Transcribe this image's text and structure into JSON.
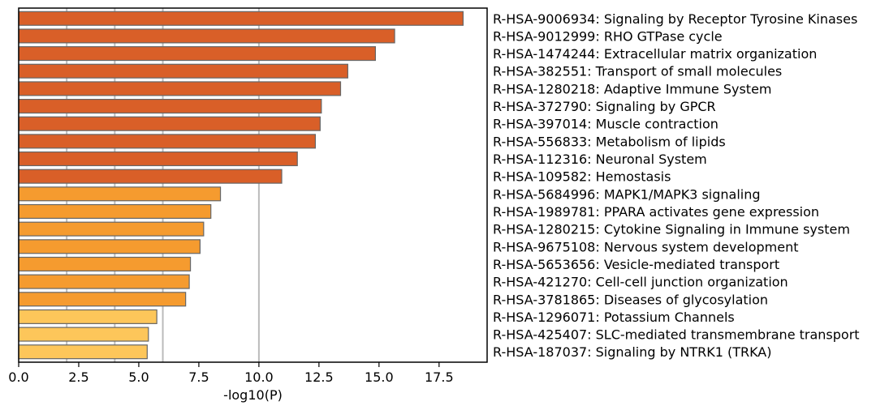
{
  "chart_data": {
    "type": "bar",
    "orientation": "horizontal",
    "xlabel": "-log10(P)",
    "xlim": [
      0,
      19.5
    ],
    "xticks": [
      "0.0",
      "2.5",
      "5.0",
      "7.5",
      "10.0",
      "12.5",
      "15.0",
      "17.5"
    ],
    "xtick_values": [
      0,
      2.5,
      5,
      7.5,
      10,
      12.5,
      15,
      17.5
    ],
    "reference_lines": [
      2,
      4,
      6,
      10
    ],
    "grid": false,
    "categories": [
      "R-HSA-9006934: Signaling by Receptor Tyrosine Kinases",
      "R-HSA-9012999: RHO GTPase cycle",
      "R-HSA-1474244: Extracellular matrix organization",
      "R-HSA-382551: Transport of small molecules",
      "R-HSA-1280218: Adaptive Immune System",
      "R-HSA-372790: Signaling by GPCR",
      "R-HSA-397014: Muscle contraction",
      "R-HSA-556833: Metabolism of lipids",
      "R-HSA-112316: Neuronal System",
      "R-HSA-109582: Hemostasis",
      "R-HSA-5684996: MAPK1/MAPK3 signaling",
      "R-HSA-1989781: PPARA activates gene expression",
      "R-HSA-1280215: Cytokine Signaling in Immune system",
      "R-HSA-9675108: Nervous system development",
      "R-HSA-5653656: Vesicle-mediated transport",
      "R-HSA-421270: Cell-cell junction organization",
      "R-HSA-3781865: Diseases of glycosylation",
      "R-HSA-1296071: Potassium Channels",
      "R-HSA-425407: SLC-mediated transmembrane transport",
      "R-HSA-187037: Signaling by NTRK1 (TRKA)"
    ],
    "values": [
      18.5,
      15.65,
      14.85,
      13.7,
      13.4,
      12.6,
      12.55,
      12.35,
      11.6,
      10.95,
      8.4,
      8.0,
      7.7,
      7.55,
      7.15,
      7.1,
      6.95,
      5.75,
      5.4,
      5.35
    ],
    "colors": [
      "#d95f28",
      "#d95f28",
      "#d95f28",
      "#d95f28",
      "#d95f28",
      "#d95f28",
      "#d95f28",
      "#d95f28",
      "#d95f28",
      "#d95f28",
      "#f59b2f",
      "#f59b2f",
      "#f59b2f",
      "#f59b2f",
      "#f59b2f",
      "#f59b2f",
      "#f59b2f",
      "#fdc65a",
      "#fdc65a",
      "#fdc65a"
    ],
    "bar_edge_color": "#666666",
    "reference_line_color": "#bbbbbb"
  }
}
